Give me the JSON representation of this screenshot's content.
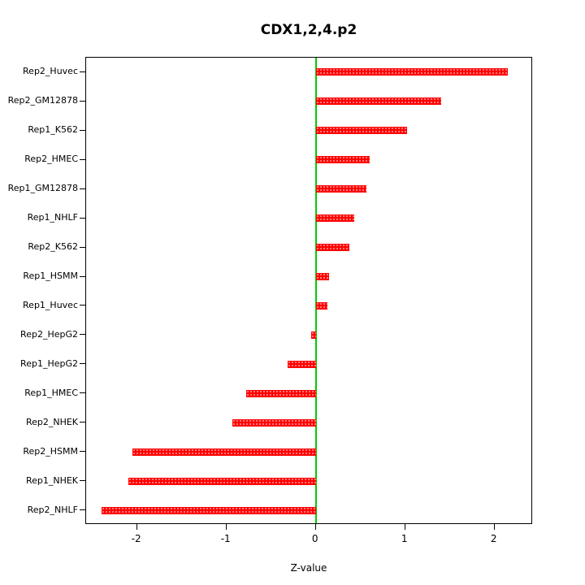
{
  "title": "CDX1,2,4.p2",
  "chart_data": {
    "type": "bar",
    "orientation": "horizontal",
    "title": "CDX1,2,4.p2",
    "xlabel": "Z-value",
    "ylabel": "",
    "xlim": [
      -2.57,
      2.43
    ],
    "xticks": [
      -2,
      -1,
      0,
      1,
      2
    ],
    "grid": false,
    "legend": "none",
    "bar_color": "#ff0000",
    "zero_line_color": "#00cc00",
    "categories": [
      "Rep2_Huvec",
      "Rep2_GM12878",
      "Rep1_K562",
      "Rep2_HMEC",
      "Rep1_GM12878",
      "Rep1_NHLF",
      "Rep2_K562",
      "Rep1_HSMM",
      "Rep1_Huvec",
      "Rep2_HepG2",
      "Rep1_HepG2",
      "Rep1_HMEC",
      "Rep2_NHEK",
      "Rep2_HSMM",
      "Rep1_NHEK",
      "Rep2_NHLF"
    ],
    "values": [
      2.15,
      1.4,
      1.02,
      0.6,
      0.57,
      0.43,
      0.38,
      0.15,
      0.13,
      -0.05,
      -0.32,
      -0.78,
      -0.93,
      -2.05,
      -2.1,
      -2.4
    ]
  }
}
